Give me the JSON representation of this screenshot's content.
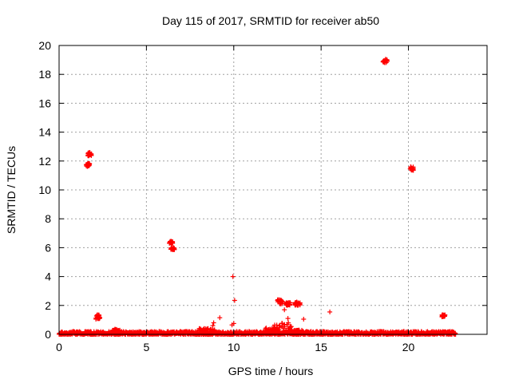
{
  "chart_data": {
    "type": "scatter",
    "title": "Day 115 of 2017, SRMTID for receiver ab50",
    "xlabel": "GPS time / hours",
    "ylabel": "SRMTID / TECUs",
    "xlim": [
      0,
      24.5
    ],
    "ylim": [
      0,
      20
    ],
    "xticks": [
      0,
      5,
      10,
      15,
      20
    ],
    "yticks": [
      0,
      2,
      4,
      6,
      8,
      10,
      12,
      14,
      16,
      18,
      20
    ],
    "grid": true,
    "marker": "plus",
    "series_color": "#ff0000",
    "clusters": [
      {
        "x": [
          1.55,
          1.75
        ],
        "y": [
          11.6,
          11.85
        ]
      },
      {
        "x": [
          1.65,
          1.85
        ],
        "y": [
          12.35,
          12.6
        ]
      },
      {
        "x": [
          2.1,
          2.35
        ],
        "y": [
          1.05,
          1.35
        ]
      },
      {
        "x": [
          6.3,
          6.5
        ],
        "y": [
          6.3,
          6.45
        ]
      },
      {
        "x": [
          6.4,
          6.6
        ],
        "y": [
          5.85,
          6.0
        ]
      },
      {
        "x": [
          12.5,
          13.0
        ],
        "y": [
          2.1,
          2.4
        ]
      },
      {
        "x": [
          13.0,
          13.3
        ],
        "y": [
          2.0,
          2.2
        ]
      },
      {
        "x": [
          13.5,
          13.8
        ],
        "y": [
          2.0,
          2.25
        ]
      },
      {
        "x": [
          12.3,
          13.3
        ],
        "y": [
          0.3,
          0.8
        ]
      },
      {
        "x": [
          18.55,
          18.8
        ],
        "y": [
          18.8,
          19.05
        ]
      },
      {
        "x": [
          20.1,
          20.3
        ],
        "y": [
          11.35,
          11.6
        ]
      },
      {
        "x": [
          21.9,
          22.1
        ],
        "y": [
          1.2,
          1.35
        ]
      }
    ],
    "points": [
      [
        9.95,
        4.0
      ],
      [
        10.05,
        2.35
      ],
      [
        9.2,
        1.15
      ],
      [
        9.9,
        0.65
      ],
      [
        10.0,
        0.75
      ],
      [
        12.9,
        1.7
      ],
      [
        13.1,
        1.1
      ],
      [
        14.0,
        1.05
      ],
      [
        15.5,
        1.55
      ],
      [
        8.85,
        0.8
      ],
      [
        8.8,
        0.6
      ],
      [
        3.2,
        0.35
      ],
      [
        8.3,
        0.4
      ],
      [
        12.0,
        0.3
      ]
    ],
    "baseline": {
      "x_range": [
        0.0,
        22.7
      ],
      "y_range": [
        0.0,
        0.2
      ],
      "dense": true
    }
  }
}
